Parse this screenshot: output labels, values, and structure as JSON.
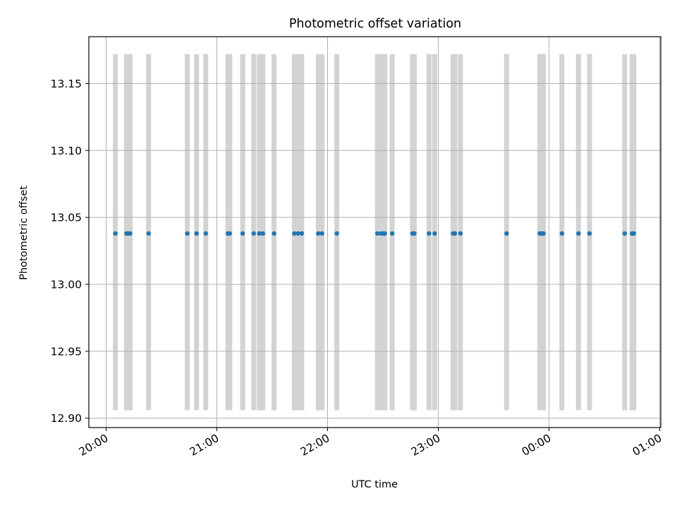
{
  "chart_data": {
    "type": "scatter",
    "title": "Photometric offset variation",
    "xlabel": "UTC time",
    "ylabel": "Photometric offset",
    "x_axis": {
      "kind": "time",
      "start": "20:00",
      "end": "01:00 (next day)",
      "ticks": [
        "20:00",
        "21:00",
        "22:00",
        "23:00",
        "00:00",
        "01:00"
      ],
      "range": [
        "19:55",
        "01:00"
      ]
    },
    "y_axis": {
      "ticks": [
        "12.90",
        "12.95",
        "13.00",
        "13.05",
        "13.10",
        "13.15"
      ],
      "tick_values": [
        12.9,
        12.95,
        13.0,
        13.05,
        13.1,
        13.15
      ],
      "ylim": [
        12.893,
        13.185
      ]
    },
    "grid": true,
    "marker_color": "#1f77b4",
    "band_color": "#d3d3d3",
    "band_range": [
      12.906,
      13.172
    ],
    "series": [
      {
        "x": [
          "20:05",
          "20:11",
          "20:12",
          "20:13",
          "20:23",
          "20:44",
          "20:49",
          "20:54",
          "21:06",
          "21:07",
          "21:14",
          "21:20",
          "21:23",
          "21:25",
          "21:31",
          "21:42",
          "21:44",
          "21:46",
          "21:55",
          "21:57",
          "22:05",
          "22:27",
          "22:29",
          "22:30",
          "22:31",
          "22:35",
          "22:46",
          "22:47",
          "22:55",
          "22:58",
          "23:08",
          "23:09",
          "23:12",
          "23:37",
          "23:55",
          "23:56",
          "23:57",
          "00:07",
          "00:16",
          "00:22",
          "00:41",
          "00:45",
          "00:46"
        ],
        "y": [
          13.038,
          13.038,
          13.038,
          13.038,
          13.038,
          13.038,
          13.038,
          13.038,
          13.038,
          13.038,
          13.038,
          13.038,
          13.038,
          13.038,
          13.038,
          13.038,
          13.038,
          13.038,
          13.038,
          13.038,
          13.038,
          13.038,
          13.038,
          13.038,
          13.038,
          13.038,
          13.038,
          13.038,
          13.038,
          13.038,
          13.038,
          13.038,
          13.038,
          13.038,
          13.038,
          13.038,
          13.038,
          13.038,
          13.038,
          13.038,
          13.038,
          13.038,
          13.038
        ]
      }
    ]
  }
}
